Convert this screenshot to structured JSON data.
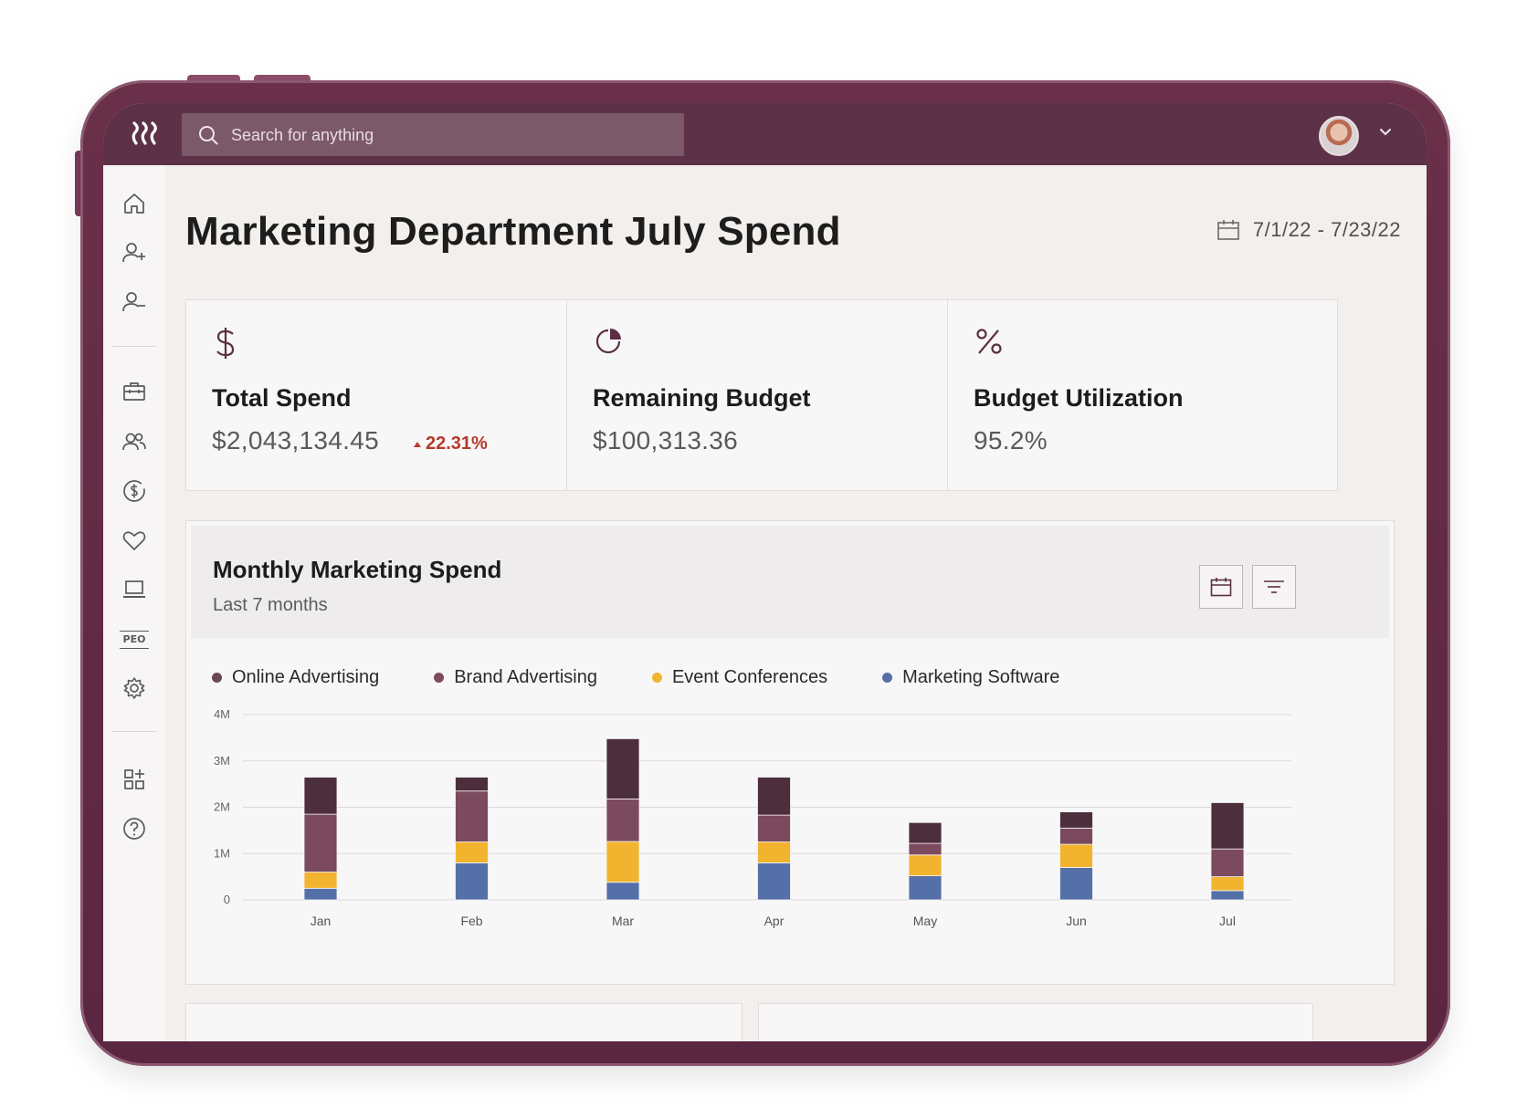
{
  "search": {
    "placeholder": "Search for anything"
  },
  "page": {
    "title": "Marketing Department July Spend",
    "date_range": "7/1/22 - 7/23/22"
  },
  "cards": [
    {
      "icon": "dollar-icon",
      "label": "Total Spend",
      "value": "$2,043,134.45",
      "delta": "22.31%"
    },
    {
      "icon": "budget-chart-icon",
      "label": "Remaining Budget",
      "value": "$100,313.36"
    },
    {
      "icon": "percent-icon",
      "label": "Budget Utilization",
      "value": "95.2%"
    }
  ],
  "chart": {
    "title": "Monthly Marketing Spend",
    "subtitle": "Last 7 months"
  },
  "sidebar": {
    "icons": [
      "home-icon",
      "add-person-icon",
      "remove-person-icon",
      "briefcase-icon",
      "team-icon",
      "payroll-icon",
      "benefits-heart-icon",
      "devices-laptop-icon",
      "peo-icon",
      "settings-gear-icon",
      "apps-add-icon",
      "help-icon"
    ],
    "peo_label": "PEO"
  },
  "colors": {
    "online": "#4d2e3d",
    "brand": "#7b4a5e",
    "events": "#f2b42f",
    "software": "#5570a8",
    "topbar": "#5d3248"
  },
  "chart_data": {
    "type": "bar",
    "stacked": true,
    "categories": [
      "Jan",
      "Feb",
      "Mar",
      "Apr",
      "May",
      "Jun",
      "Jul"
    ],
    "series": [
      {
        "name": "Marketing Software",
        "values": [
          0.25,
          0.8,
          0.38,
          0.8,
          0.52,
          0.7,
          0.2
        ]
      },
      {
        "name": "Event Conferences",
        "values": [
          0.35,
          0.45,
          0.88,
          0.45,
          0.45,
          0.5,
          0.3
        ]
      },
      {
        "name": "Brand Advertising",
        "values": [
          1.25,
          1.1,
          0.92,
          0.58,
          0.25,
          0.35,
          0.6
        ]
      },
      {
        "name": "Online Advertising",
        "values": [
          0.8,
          0.3,
          1.3,
          0.82,
          0.45,
          0.35,
          1.0
        ]
      }
    ],
    "legend_order": [
      "Online Advertising",
      "Brand Advertising",
      "Event Conferences",
      "Marketing Software"
    ],
    "yticks": [
      "0",
      "1M",
      "2M",
      "3M",
      "4M"
    ],
    "ylim": [
      0,
      4
    ],
    "grid": true,
    "legend_position": "top-left"
  }
}
